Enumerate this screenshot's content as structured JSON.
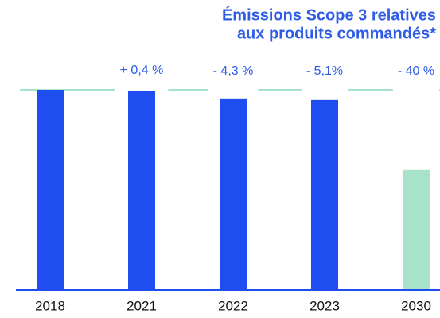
{
  "chart_data": {
    "type": "bar",
    "title": [
      "Émissions Scope 3 relatives",
      "aux produits commandés*"
    ],
    "categories": [
      "2018",
      "2021",
      "2022",
      "2023",
      "2030"
    ],
    "values": [
      0,
      0.4,
      -4.3,
      -5.1,
      -40
    ],
    "value_labels": [
      null,
      "+ 0,4 %",
      "- 4,3 %",
      "- 5,1%",
      "- 40 %"
    ],
    "colors": [
      "#1f4ef0",
      "#1f4ef0",
      "#1f4ef0",
      "#1f4ef0",
      "#a8e2c9"
    ],
    "ylim": [
      -100,
      0
    ]
  }
}
